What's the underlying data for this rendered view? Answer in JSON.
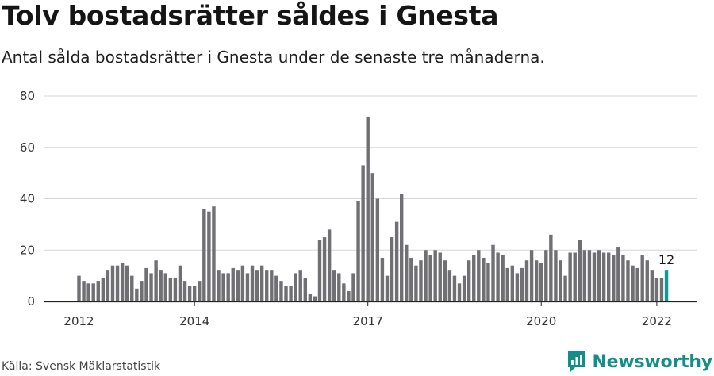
{
  "title": "Tolv bostadsrätter såldes i Gnesta",
  "subtitle": "Antal sålda bostadsrätter i Gnesta under de senaste tre månaderna.",
  "source": "Källa: Svensk Mäklarstatistik",
  "brand": {
    "name": "Newsworthy",
    "icon": "newsworthy-logo-icon"
  },
  "colors": {
    "bar": "#706f74",
    "highlight": "#0f9a97",
    "grid": "#d6d6d6",
    "axis": "#222222",
    "brand": "#128f8b"
  },
  "chart_data": {
    "type": "bar",
    "title": "Tolv bostadsrätter såldes i Gnesta",
    "subtitle": "Antal sålda bostadsrätter i Gnesta under de senaste tre månaderna.",
    "xlabel": "",
    "ylabel": "",
    "ylim": [
      0,
      80
    ],
    "yticks": [
      0,
      20,
      40,
      60,
      80
    ],
    "grid": true,
    "legend": "none",
    "x_tick_labels": [
      "2012",
      "2014",
      "2017",
      "2020",
      "2022"
    ],
    "x_tick_months": [
      0,
      24,
      60,
      96,
      120
    ],
    "start": "2012-01",
    "end": "2022-03",
    "series": [
      {
        "values": [
          10,
          8,
          7,
          7,
          8,
          9,
          12,
          14,
          14,
          15,
          14,
          10,
          5,
          8,
          13,
          11,
          16,
          12,
          11,
          9,
          9,
          14,
          8,
          6,
          6,
          8,
          36,
          35,
          37,
          12,
          11,
          11,
          13,
          12,
          14,
          11,
          14,
          12,
          14,
          12,
          12,
          10,
          8,
          6,
          6,
          11,
          12,
          9,
          3,
          2,
          24,
          25,
          28,
          12,
          11,
          7,
          4,
          11,
          39,
          53,
          72,
          50,
          40,
          17,
          10,
          25,
          31,
          42,
          22,
          17,
          14,
          16,
          20,
          18,
          20,
          19,
          16,
          12,
          10,
          7,
          10,
          16,
          18,
          20,
          17,
          15,
          22,
          19,
          18,
          13,
          14,
          11,
          13,
          16,
          20,
          16,
          15,
          20,
          26,
          20,
          16,
          10,
          19,
          19,
          24,
          20,
          20,
          19,
          20,
          19,
          19,
          18,
          21,
          18,
          16,
          14,
          13,
          18,
          16,
          12,
          9,
          9,
          12
        ]
      }
    ],
    "highlight": {
      "date": "2022-03",
      "value": 12,
      "label": "12"
    }
  }
}
